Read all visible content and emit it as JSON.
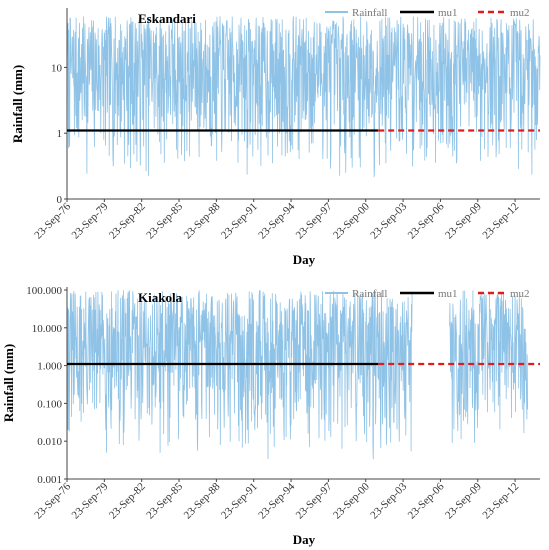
{
  "chart_data": [
    {
      "type": "line",
      "title": "Eskandari",
      "xlabel": "Day",
      "ylabel": "Rainfall (mm)",
      "yscale": "log",
      "ylim": [
        0.1,
        80
      ],
      "yticks": [
        0.1,
        1,
        10
      ],
      "ytick_labels": [
        "0",
        "1",
        "10"
      ],
      "xlim": [
        "23-Sep-76",
        "23-Sep-14"
      ],
      "xticks": [
        "23-Sep-76",
        "23-Sep-79",
        "23-Sep-82",
        "23-Sep-85",
        "23-Sep-88",
        "23-Sep-91",
        "23-Sep-94",
        "23-Sep-97",
        "23-Sep-00",
        "23-Sep-03",
        "23-Sep-06",
        "23-Sep-09",
        "23-Sep-12"
      ],
      "legend_position": "top-right",
      "series": [
        {
          "name": "Rainfall",
          "color": "#8ec2e6",
          "style": "solid",
          "note_range_mm": [
            0.2,
            60
          ],
          "x_range": [
            "23-Sep-76",
            "23-Sep-14"
          ]
        },
        {
          "name": "mu1",
          "color": "#000000",
          "style": "solid",
          "value": 1.1,
          "x_range": [
            "23-Sep-76",
            "23-Sep-01"
          ]
        },
        {
          "name": "mu2",
          "color": "#e31a1c",
          "style": "dashed",
          "value": 1.1,
          "x_range": [
            "23-Sep-01",
            "23-Sep-14"
          ]
        }
      ]
    },
    {
      "type": "line",
      "title": "Kiakola",
      "xlabel": "Day",
      "ylabel": "Rainfall (mm)",
      "yscale": "log",
      "ylim": [
        0.001,
        120
      ],
      "yticks": [
        0.001,
        0.01,
        0.1,
        1,
        10,
        100
      ],
      "ytick_labels": [
        "0.001",
        "0.010",
        "0.100",
        "1.000",
        "10.000",
        "100.000"
      ],
      "xlim": [
        "23-Sep-76",
        "23-Sep-14"
      ],
      "xticks": [
        "23-Sep-76",
        "23-Sep-79",
        "23-Sep-82",
        "23-Sep-85",
        "23-Sep-88",
        "23-Sep-91",
        "23-Sep-94",
        "23-Sep-97",
        "23-Sep-00",
        "23-Sep-03",
        "23-Sep-06",
        "23-Sep-09",
        "23-Sep-12"
      ],
      "legend_position": "top-right",
      "series": [
        {
          "name": "Rainfall",
          "color": "#8ec2e6",
          "style": "solid",
          "note_range_mm": [
            0.003,
            100
          ],
          "x_range": [
            "23-Sep-76",
            "23-Sep-13"
          ],
          "gap": [
            "15-Jun-04",
            "15-Jun-07"
          ]
        },
        {
          "name": "mu1",
          "color": "#000000",
          "style": "solid",
          "value": 1.1,
          "x_range": [
            "23-Sep-76",
            "23-Sep-01"
          ]
        },
        {
          "name": "mu2",
          "color": "#e31a1c",
          "style": "dashed",
          "value": 1.1,
          "x_range": [
            "23-Sep-01",
            "23-Sep-14"
          ]
        }
      ]
    }
  ]
}
